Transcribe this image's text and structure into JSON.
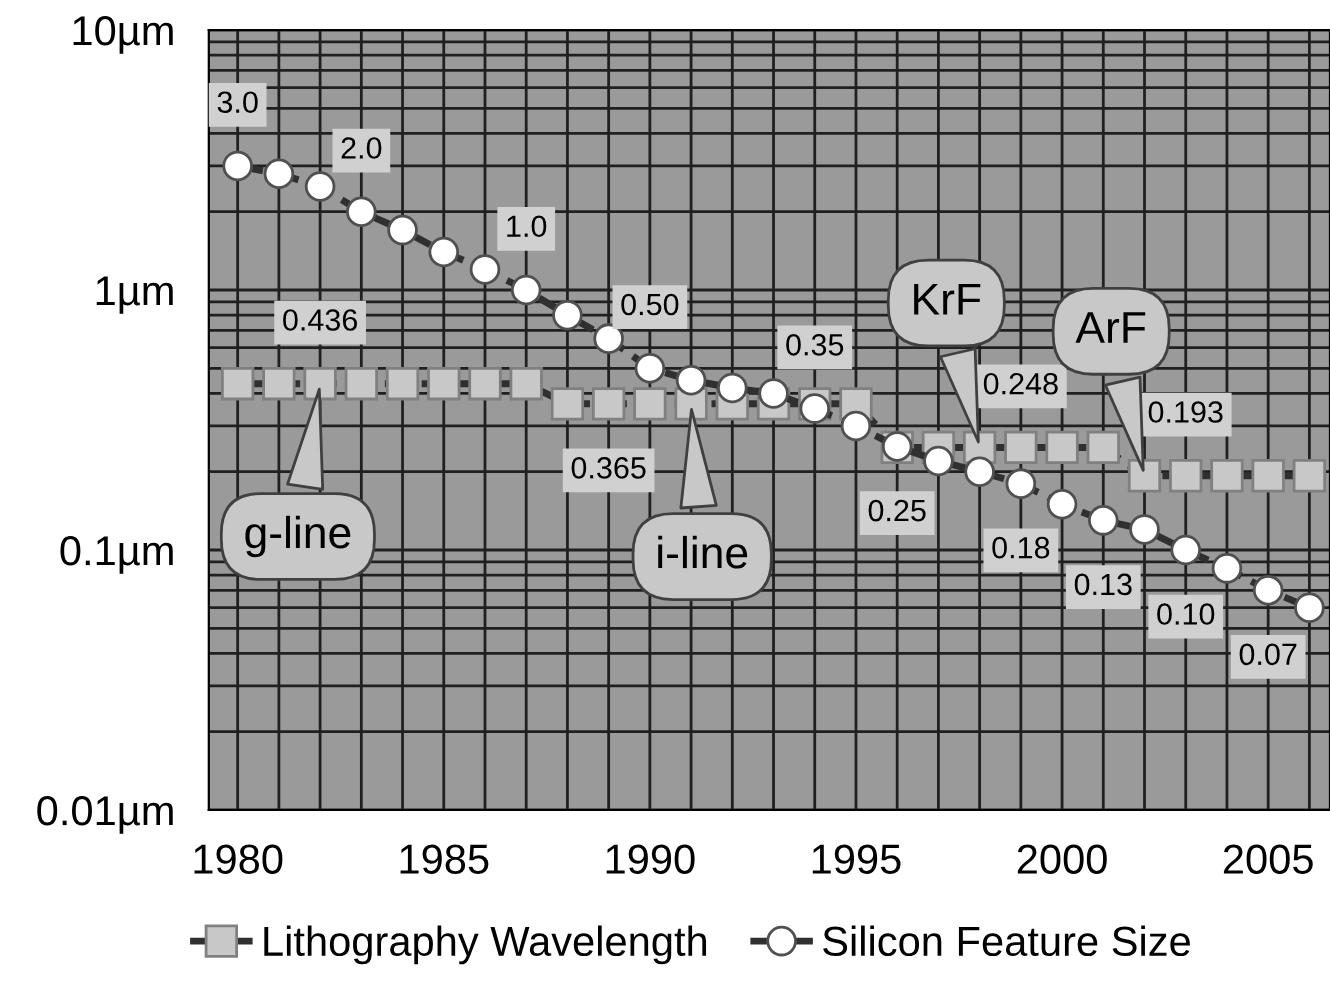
{
  "chart_data": {
    "type": "line",
    "x": [
      1980,
      1981,
      1982,
      1983,
      1984,
      1985,
      1986,
      1987,
      1988,
      1989,
      1990,
      1991,
      1992,
      1993,
      1994,
      1995,
      1996,
      1997,
      1998,
      1999,
      2000,
      2001,
      2002,
      2003,
      2004,
      2005,
      2006
    ],
    "series": [
      {
        "name": "Lithography Wavelength",
        "color": "#c8c8c8",
        "marker": "square",
        "line_style": "dashed",
        "values": [
          0.436,
          0.436,
          0.436,
          0.436,
          0.436,
          0.436,
          0.436,
          0.436,
          0.365,
          0.365,
          0.365,
          0.365,
          0.365,
          0.365,
          0.365,
          0.365,
          0.248,
          0.248,
          0.248,
          0.248,
          0.248,
          0.248,
          0.193,
          0.193,
          0.193,
          0.193,
          0.193
        ],
        "value_labels": [
          null,
          null,
          "0.436",
          null,
          null,
          null,
          null,
          null,
          null,
          "0.365",
          null,
          null,
          null,
          null,
          null,
          null,
          null,
          null,
          null,
          "0.248",
          null,
          null,
          null,
          "0.193",
          null,
          null,
          null
        ]
      },
      {
        "name": "Silicon Feature Size",
        "color": "#ffffff",
        "marker": "circle",
        "line_style": "dashed",
        "values": [
          3.0,
          2.8,
          2.5,
          2.0,
          1.7,
          1.4,
          1.2,
          1.0,
          0.8,
          0.65,
          0.5,
          0.45,
          0.42,
          0.4,
          0.35,
          0.3,
          0.25,
          0.22,
          0.2,
          0.18,
          0.15,
          0.13,
          0.12,
          0.1,
          0.085,
          0.07,
          0.06
        ],
        "value_labels": [
          "3.0",
          null,
          null,
          "2.0",
          null,
          null,
          null,
          "1.0",
          null,
          null,
          "0.50",
          null,
          null,
          null,
          "0.35",
          null,
          "0.25",
          null,
          null,
          "0.18",
          null,
          "0.13",
          null,
          "0.10",
          null,
          "0.07",
          null
        ]
      }
    ],
    "log": "y",
    "xlim": [
      1979.3,
      2006.5
    ],
    "ylim": [
      0.01,
      10
    ],
    "xticks": [
      1980,
      1985,
      1990,
      1995,
      2000,
      2005
    ],
    "yticks": [
      {
        "value": 0.01,
        "label": "0.01µm"
      },
      {
        "value": 0.1,
        "label": "0.1µm"
      },
      {
        "value": 1,
        "label": "1µm"
      },
      {
        "value": 10,
        "label": "10µm"
      }
    ],
    "grid": true,
    "legend": "bottom",
    "annotations": [
      {
        "text": "g-line",
        "x": 1982,
        "y": 0.436
      },
      {
        "text": "i-line",
        "x": 1991,
        "y": 0.365
      },
      {
        "text": "KrF",
        "x": 1998,
        "y": 0.248
      },
      {
        "text": "ArF",
        "x": 2002,
        "y": 0.193
      }
    ]
  }
}
